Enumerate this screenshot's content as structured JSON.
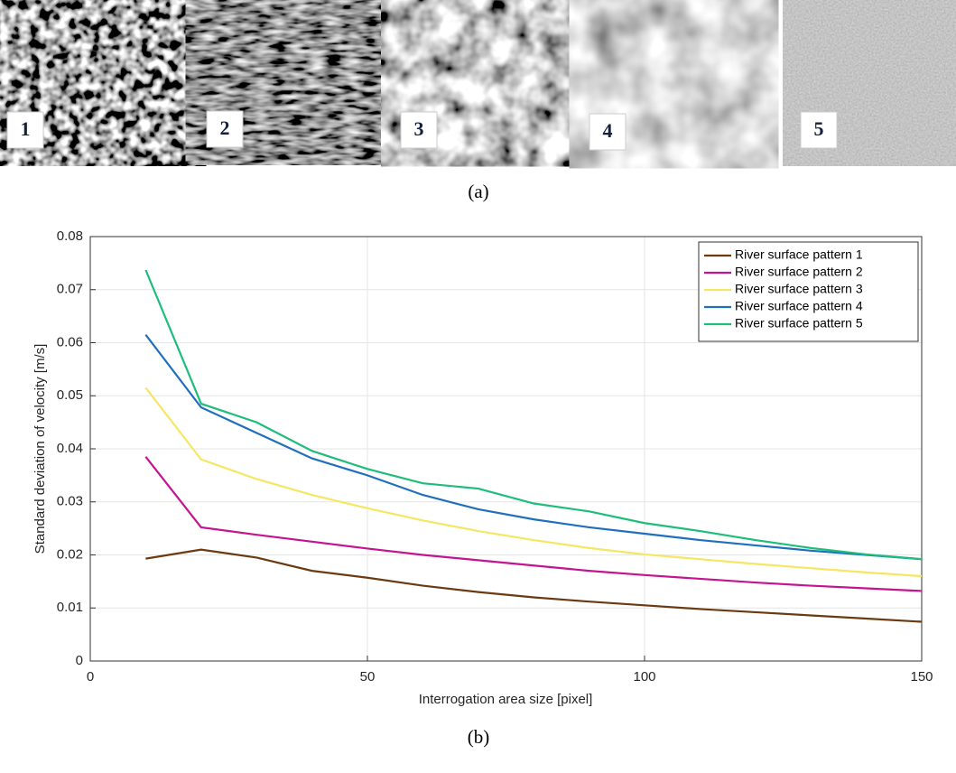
{
  "panel_a": {
    "label": "(a)",
    "image_labels": [
      "1",
      "2",
      "3",
      "4",
      "5"
    ]
  },
  "panel_b": {
    "label": "(b)"
  },
  "chart_data": {
    "type": "line",
    "x_label": "Interrogation area size [pixel]",
    "y_label": "Standard deviation of velocity [m/s]",
    "x": [
      10,
      20,
      30,
      40,
      50,
      60,
      70,
      80,
      90,
      100,
      110,
      120,
      130,
      140,
      150
    ],
    "xlim": [
      0,
      150
    ],
    "xticks": [
      0,
      50,
      100,
      150
    ],
    "ylim": [
      0,
      0.08
    ],
    "yticks": [
      0,
      0.01,
      0.02,
      0.03,
      0.04,
      0.05,
      0.06,
      0.07,
      0.08
    ],
    "grid": true,
    "legend": "top-right",
    "series": [
      {
        "name": "River surface pattern 1",
        "color": "#6b3a11",
        "values": [
          0.0193,
          0.021,
          0.0195,
          0.017,
          0.0157,
          0.0142,
          0.013,
          0.012,
          0.0112,
          0.0105,
          0.0098,
          0.0092,
          0.0086,
          0.008,
          0.0074
        ]
      },
      {
        "name": "River surface pattern 2",
        "color": "#c4148f",
        "values": [
          0.0385,
          0.0252,
          0.0238,
          0.0225,
          0.0212,
          0.02,
          0.019,
          0.018,
          0.017,
          0.0162,
          0.0155,
          0.0148,
          0.0142,
          0.0137,
          0.0132
        ]
      },
      {
        "name": "River surface pattern 3",
        "color": "#f5e663",
        "values": [
          0.0515,
          0.038,
          0.0343,
          0.0313,
          0.0288,
          0.0265,
          0.0245,
          0.0228,
          0.0213,
          0.0201,
          0.0192,
          0.0183,
          0.0175,
          0.0167,
          0.016
        ]
      },
      {
        "name": "River surface pattern 4",
        "color": "#1f6fbf",
        "values": [
          0.0615,
          0.0478,
          0.043,
          0.0382,
          0.035,
          0.0313,
          0.0286,
          0.0267,
          0.0252,
          0.024,
          0.0228,
          0.0218,
          0.0208,
          0.02,
          0.0192
        ]
      },
      {
        "name": "River surface pattern 5",
        "color": "#1dbd7a",
        "values": [
          0.0737,
          0.0485,
          0.045,
          0.0396,
          0.0362,
          0.0335,
          0.0325,
          0.0297,
          0.0282,
          0.026,
          0.0245,
          0.0228,
          0.0213,
          0.0201,
          0.0192
        ]
      }
    ]
  }
}
